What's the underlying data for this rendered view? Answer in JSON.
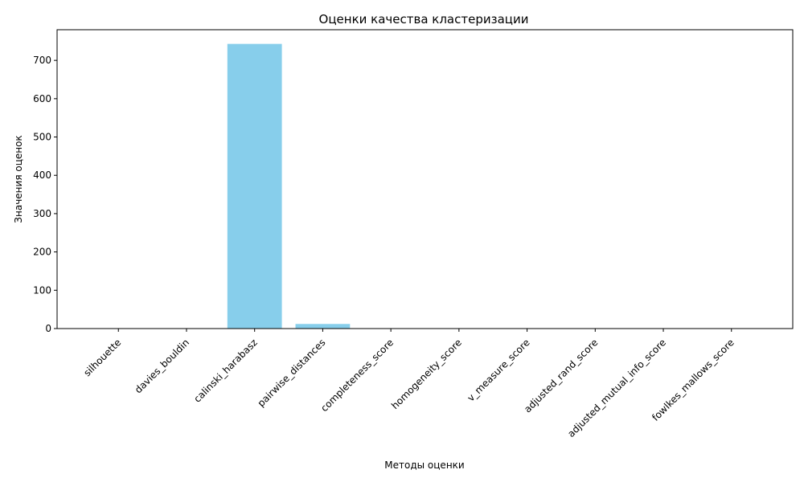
{
  "chart_data": {
    "type": "bar",
    "title": "Оценки качества кластеризации",
    "xlabel": "Методы оценки",
    "ylabel": "Значения оценок",
    "categories": [
      "silhouette",
      "davies_bouldin",
      "calinski_harabasz",
      "pairwise_distances",
      "completeness_score",
      "homogeneity_score",
      "v_measure_score",
      "adjusted_rand_score",
      "adjusted_mutual_info_score",
      "fowlkes_mallows_score"
    ],
    "values": [
      0.5,
      0.8,
      743,
      12,
      0.8,
      0.8,
      0.8,
      0.8,
      0.8,
      0.9
    ],
    "ylim": [
      0,
      780
    ],
    "yticks": [
      0,
      100,
      200,
      300,
      400,
      500,
      600,
      700
    ],
    "bar_color": "#87CEEB",
    "grid": false,
    "legend": "none"
  }
}
